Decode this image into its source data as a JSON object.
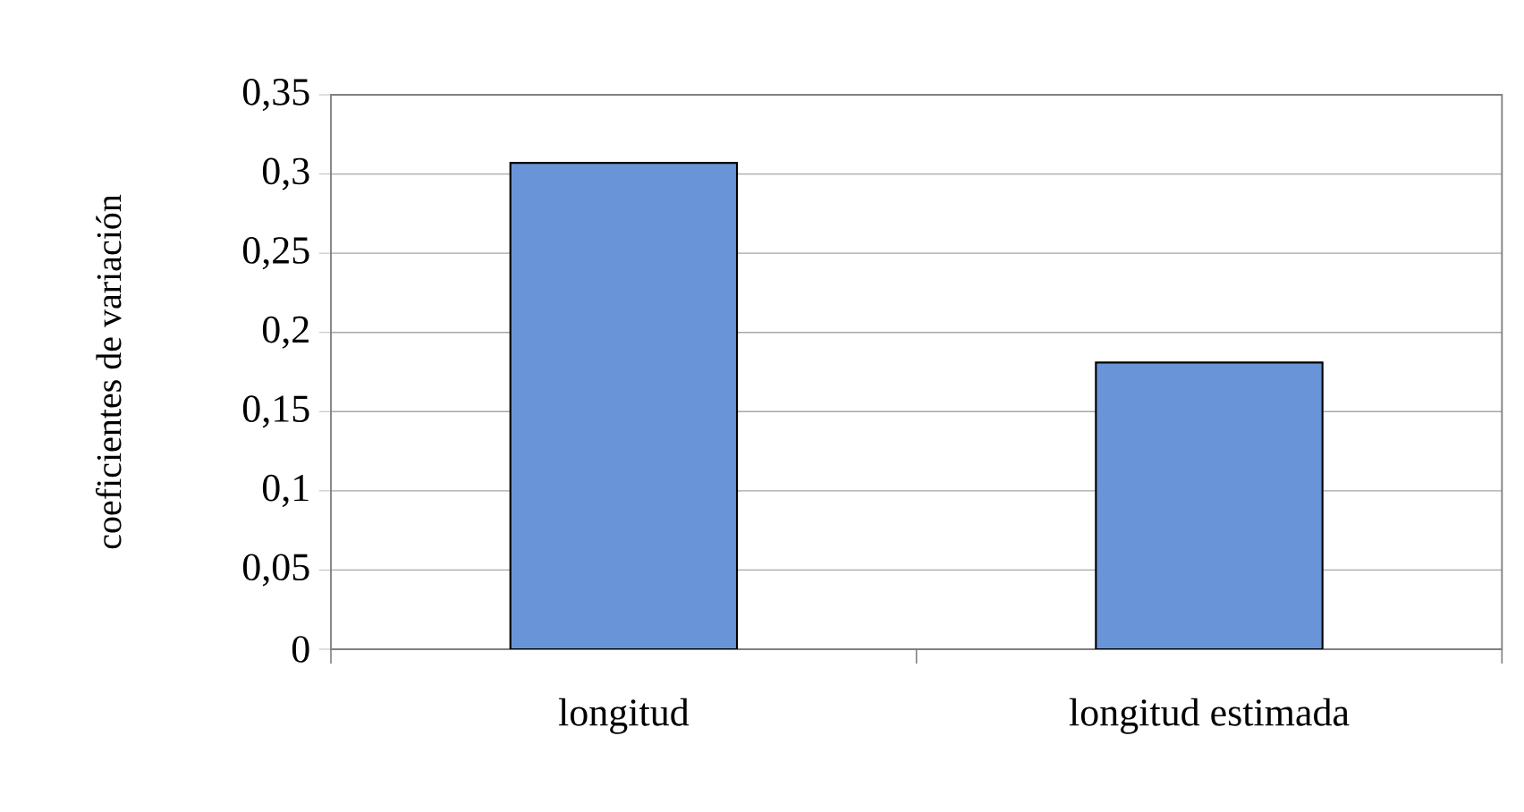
{
  "chart_data": {
    "type": "bar",
    "ylabel": "coeficientes de variación",
    "categories": [
      "longitud",
      "longitud estimada"
    ],
    "values": [
      0.307,
      0.181
    ],
    "color": "#6a94d8",
    "ylim": [
      0,
      0.35
    ],
    "yticks": [
      {
        "value": 0,
        "label": "0"
      },
      {
        "value": 0.05,
        "label": "0,05"
      },
      {
        "value": 0.1,
        "label": "0,1"
      },
      {
        "value": 0.15,
        "label": "0,15"
      },
      {
        "value": 0.2,
        "label": "0,2"
      },
      {
        "value": 0.25,
        "label": "0,25"
      },
      {
        "value": 0.3,
        "label": "0,3"
      },
      {
        "value": 0.35,
        "label": "0,35"
      }
    ],
    "grid": "y"
  }
}
